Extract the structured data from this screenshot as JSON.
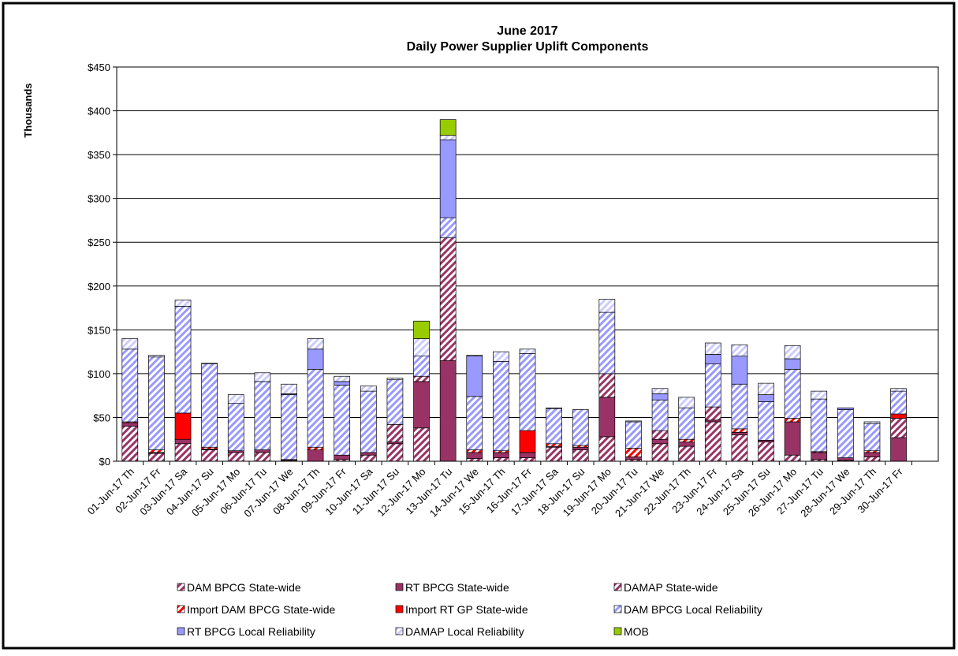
{
  "chart_data": {
    "type": "bar",
    "stacked": true,
    "title": "June 2017",
    "subtitle": "Daily Power Supplier Uplift Components",
    "y_label": "Thousands",
    "categories": [
      "01-Jun-17 Th",
      "02-Jun-17 Fr",
      "03-Jun-17 Sa",
      "04-Jun-17 Su",
      "05-Jun-17 Mo",
      "06-Jun-17 Tu",
      "07-Jun-17 We",
      "08-Jun-17 Th",
      "09-Jun-17 Fr",
      "10-Jun-17 Sa",
      "11-Jun-17 Su",
      "12-Jun-17 Mo",
      "13-Jun-17 Tu",
      "14-Jun-17 We",
      "15-Jun-17 Th",
      "16-Jun-17 Fr",
      "17-Jun-17 Sa",
      "18-Jun-17 Su",
      "19-Jun-17 Mo",
      "20-Jun-17 Tu",
      "21-Jun-17 We",
      "22-Jun-17 Th",
      "23-Jun-17 Fr",
      "24-Jun-17 Sa",
      "25-Jun-17 Su",
      "26-Jun-17 Mo",
      "27-Jun-17 Tu",
      "28-Jun-17 We",
      "29-Jun-17 Th",
      "30-Jun-17 Fr"
    ],
    "series": [
      {
        "name": "DAM BPCG State-wide",
        "color": "#993366",
        "hatch": true,
        "values": [
          40,
          9,
          20,
          13,
          10,
          10,
          1,
          0,
          2,
          7,
          20,
          38,
          0,
          3,
          4,
          4,
          16,
          13,
          28,
          2,
          20,
          17,
          45,
          30,
          22,
          7,
          2,
          1,
          5,
          0
        ]
      },
      {
        "name": "RT BPCG State-wide",
        "color": "#993366",
        "hatch": false,
        "values": [
          4,
          1,
          5,
          1,
          2,
          3,
          1,
          13,
          5,
          3,
          2,
          53,
          115,
          7,
          6,
          6,
          1,
          3,
          45,
          3,
          5,
          5,
          2,
          3,
          2,
          38,
          8,
          3,
          5,
          27
        ]
      },
      {
        "name": "DAMAP State-wide",
        "color": "#993366",
        "hatch": true,
        "values": [
          0,
          0,
          0,
          0,
          0,
          0,
          0,
          0,
          0,
          0,
          20,
          6,
          140,
          0,
          0,
          0,
          0,
          0,
          27,
          0,
          10,
          0,
          15,
          0,
          0,
          0,
          0,
          0,
          0,
          22
        ]
      },
      {
        "name": "Import DAM BPCG State-wide",
        "color": "#ff0000",
        "hatch": true,
        "values": [
          1,
          3,
          0,
          2,
          0,
          0,
          0,
          3,
          0,
          0,
          0,
          0,
          0,
          3,
          2,
          0,
          3,
          2,
          0,
          10,
          0,
          3,
          0,
          4,
          0,
          4,
          1,
          0,
          2,
          0
        ]
      },
      {
        "name": "Import RT GP State-wide",
        "color": "#ff0000",
        "hatch": false,
        "values": [
          0,
          0,
          30,
          0,
          0,
          0,
          0,
          0,
          0,
          0,
          0,
          0,
          0,
          0,
          0,
          25,
          0,
          0,
          0,
          0,
          0,
          0,
          0,
          0,
          0,
          0,
          0,
          0,
          0,
          5
        ]
      },
      {
        "name": "DAM BPCG Local Reliability",
        "color": "#9999ff",
        "hatch": true,
        "values": [
          83,
          106,
          122,
          95,
          54,
          78,
          74,
          89,
          80,
          70,
          51,
          23,
          23,
          61,
          102,
          88,
          40,
          41,
          70,
          30,
          35,
          36,
          49,
          51,
          44,
          56,
          60,
          55,
          31,
          26
        ]
      },
      {
        "name": "RT BPCG Local Reliability",
        "color": "#9999ff",
        "hatch": false,
        "values": [
          0,
          0,
          0,
          0,
          0,
          0,
          1,
          23,
          4,
          0,
          0,
          0,
          89,
          46,
          0,
          0,
          0,
          0,
          0,
          0,
          7,
          0,
          11,
          32,
          8,
          12,
          0,
          2,
          0,
          0
        ]
      },
      {
        "name": "DAMAP Local Reliability",
        "color": "#ccccff",
        "hatch": true,
        "values": [
          12,
          2,
          7,
          1,
          10,
          10,
          11,
          12,
          6,
          6,
          2,
          20,
          5,
          1,
          11,
          5,
          1,
          0,
          15,
          1,
          6,
          12,
          13,
          13,
          13,
          15,
          9,
          0,
          2,
          3
        ]
      },
      {
        "name": "MOB",
        "color": "#99cc00",
        "hatch": false,
        "values": [
          0,
          0,
          0,
          0,
          0,
          0,
          0,
          0,
          0,
          0,
          0,
          20,
          18,
          0,
          0,
          0,
          0,
          0,
          0,
          0,
          0,
          0,
          0,
          0,
          0,
          0,
          0,
          0,
          0,
          0
        ]
      }
    ],
    "ylim": [
      0,
      450
    ],
    "yticks": [
      {
        "value": 0,
        "label": "$0"
      },
      {
        "value": 50,
        "label": "$50"
      },
      {
        "value": 100,
        "label": "$100"
      },
      {
        "value": 150,
        "label": "$150"
      },
      {
        "value": 200,
        "label": "$200"
      },
      {
        "value": 250,
        "label": "$250"
      },
      {
        "value": 300,
        "label": "$300"
      },
      {
        "value": 350,
        "label": "$350"
      },
      {
        "value": 400,
        "label": "$400"
      },
      {
        "value": 450,
        "label": "$450"
      }
    ],
    "grid": true,
    "legend": "bottom"
  }
}
